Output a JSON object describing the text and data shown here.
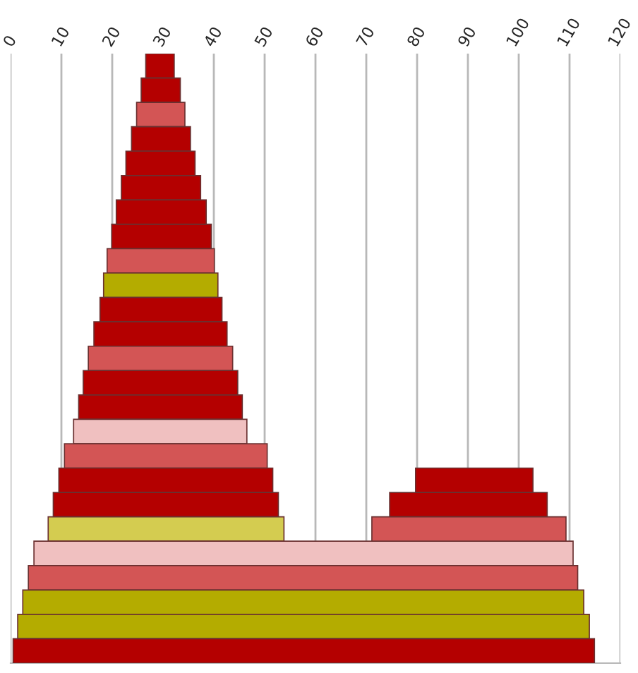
{
  "chart_data": {
    "type": "bar",
    "orientation": "horizontal",
    "categories": [
      null,
      null,
      null,
      null,
      null,
      null,
      null,
      null,
      null,
      null,
      null,
      null,
      null,
      null,
      null,
      null,
      null,
      null,
      null,
      null,
      null,
      null,
      null,
      null,
      null
    ],
    "series": [
      {
        "base": [
          26.6,
          25.7,
          24.8,
          23.8,
          22.7,
          21.8,
          20.8,
          19.9,
          19.0,
          18.3,
          17.6,
          16.4,
          15.3,
          14.3,
          13.4,
          12.4,
          10.6,
          9.5,
          8.4,
          7.4,
          4.6,
          3.5,
          2.4,
          1.4,
          0.5
        ],
        "values": [
          5.6,
          7.7,
          9.5,
          11.6,
          13.6,
          15.6,
          17.7,
          19.6,
          21.1,
          22.5,
          24.0,
          26.2,
          28.4,
          30.4,
          32.2,
          34.1,
          39.9,
          42.1,
          44.3,
          46.4,
          106.1,
          108.1,
          110.4,
          112.5,
          114.4
        ],
        "colors": [
          "#b40000",
          "#b40000",
          "#d35555",
          "#b40000",
          "#b40000",
          "#b40000",
          "#b40000",
          "#b40000",
          "#d35555",
          "#b4ac00",
          "#b40000",
          "#b40000",
          "#d35555",
          "#b40000",
          "#b40000",
          "#f0c0c0",
          "#d35555",
          "#b40000",
          "#b40000",
          "#d4cc50",
          "#f0c0c0",
          "#d35555",
          "#b4ac00",
          "#b4ac00",
          "#b40000"
        ]
      },
      {
        "base": [
          null,
          null,
          null,
          null,
          null,
          null,
          null,
          null,
          null,
          null,
          null,
          null,
          null,
          null,
          null,
          null,
          null,
          79.7,
          74.6,
          71.1,
          null,
          null,
          null,
          null,
          null
        ],
        "values": [
          null,
          null,
          null,
          null,
          null,
          null,
          null,
          null,
          null,
          null,
          null,
          null,
          null,
          null,
          null,
          null,
          null,
          23.1,
          31.0,
          38.2,
          null,
          null,
          null,
          null,
          null
        ],
        "colors": [
          "#b40000",
          "#b40000",
          "#b40000",
          "#b40000",
          "#b40000",
          "#b40000",
          "#b40000",
          "#b40000",
          "#b40000",
          "#b40000",
          "#b40000",
          "#b40000",
          "#b40000",
          "#b40000",
          "#b40000",
          "#b40000",
          "#b40000",
          "#b40000",
          "#b40000",
          "#d35555",
          "#b40000",
          "#b40000",
          "#b40000",
          "#b40000",
          "#b40000"
        ]
      }
    ],
    "xlim": [
      0,
      120
    ],
    "xticks": [
      0,
      10,
      20,
      30,
      40,
      50,
      60,
      70,
      80,
      90,
      100,
      110,
      120
    ],
    "grid": "x",
    "tick_labels": "x"
  }
}
